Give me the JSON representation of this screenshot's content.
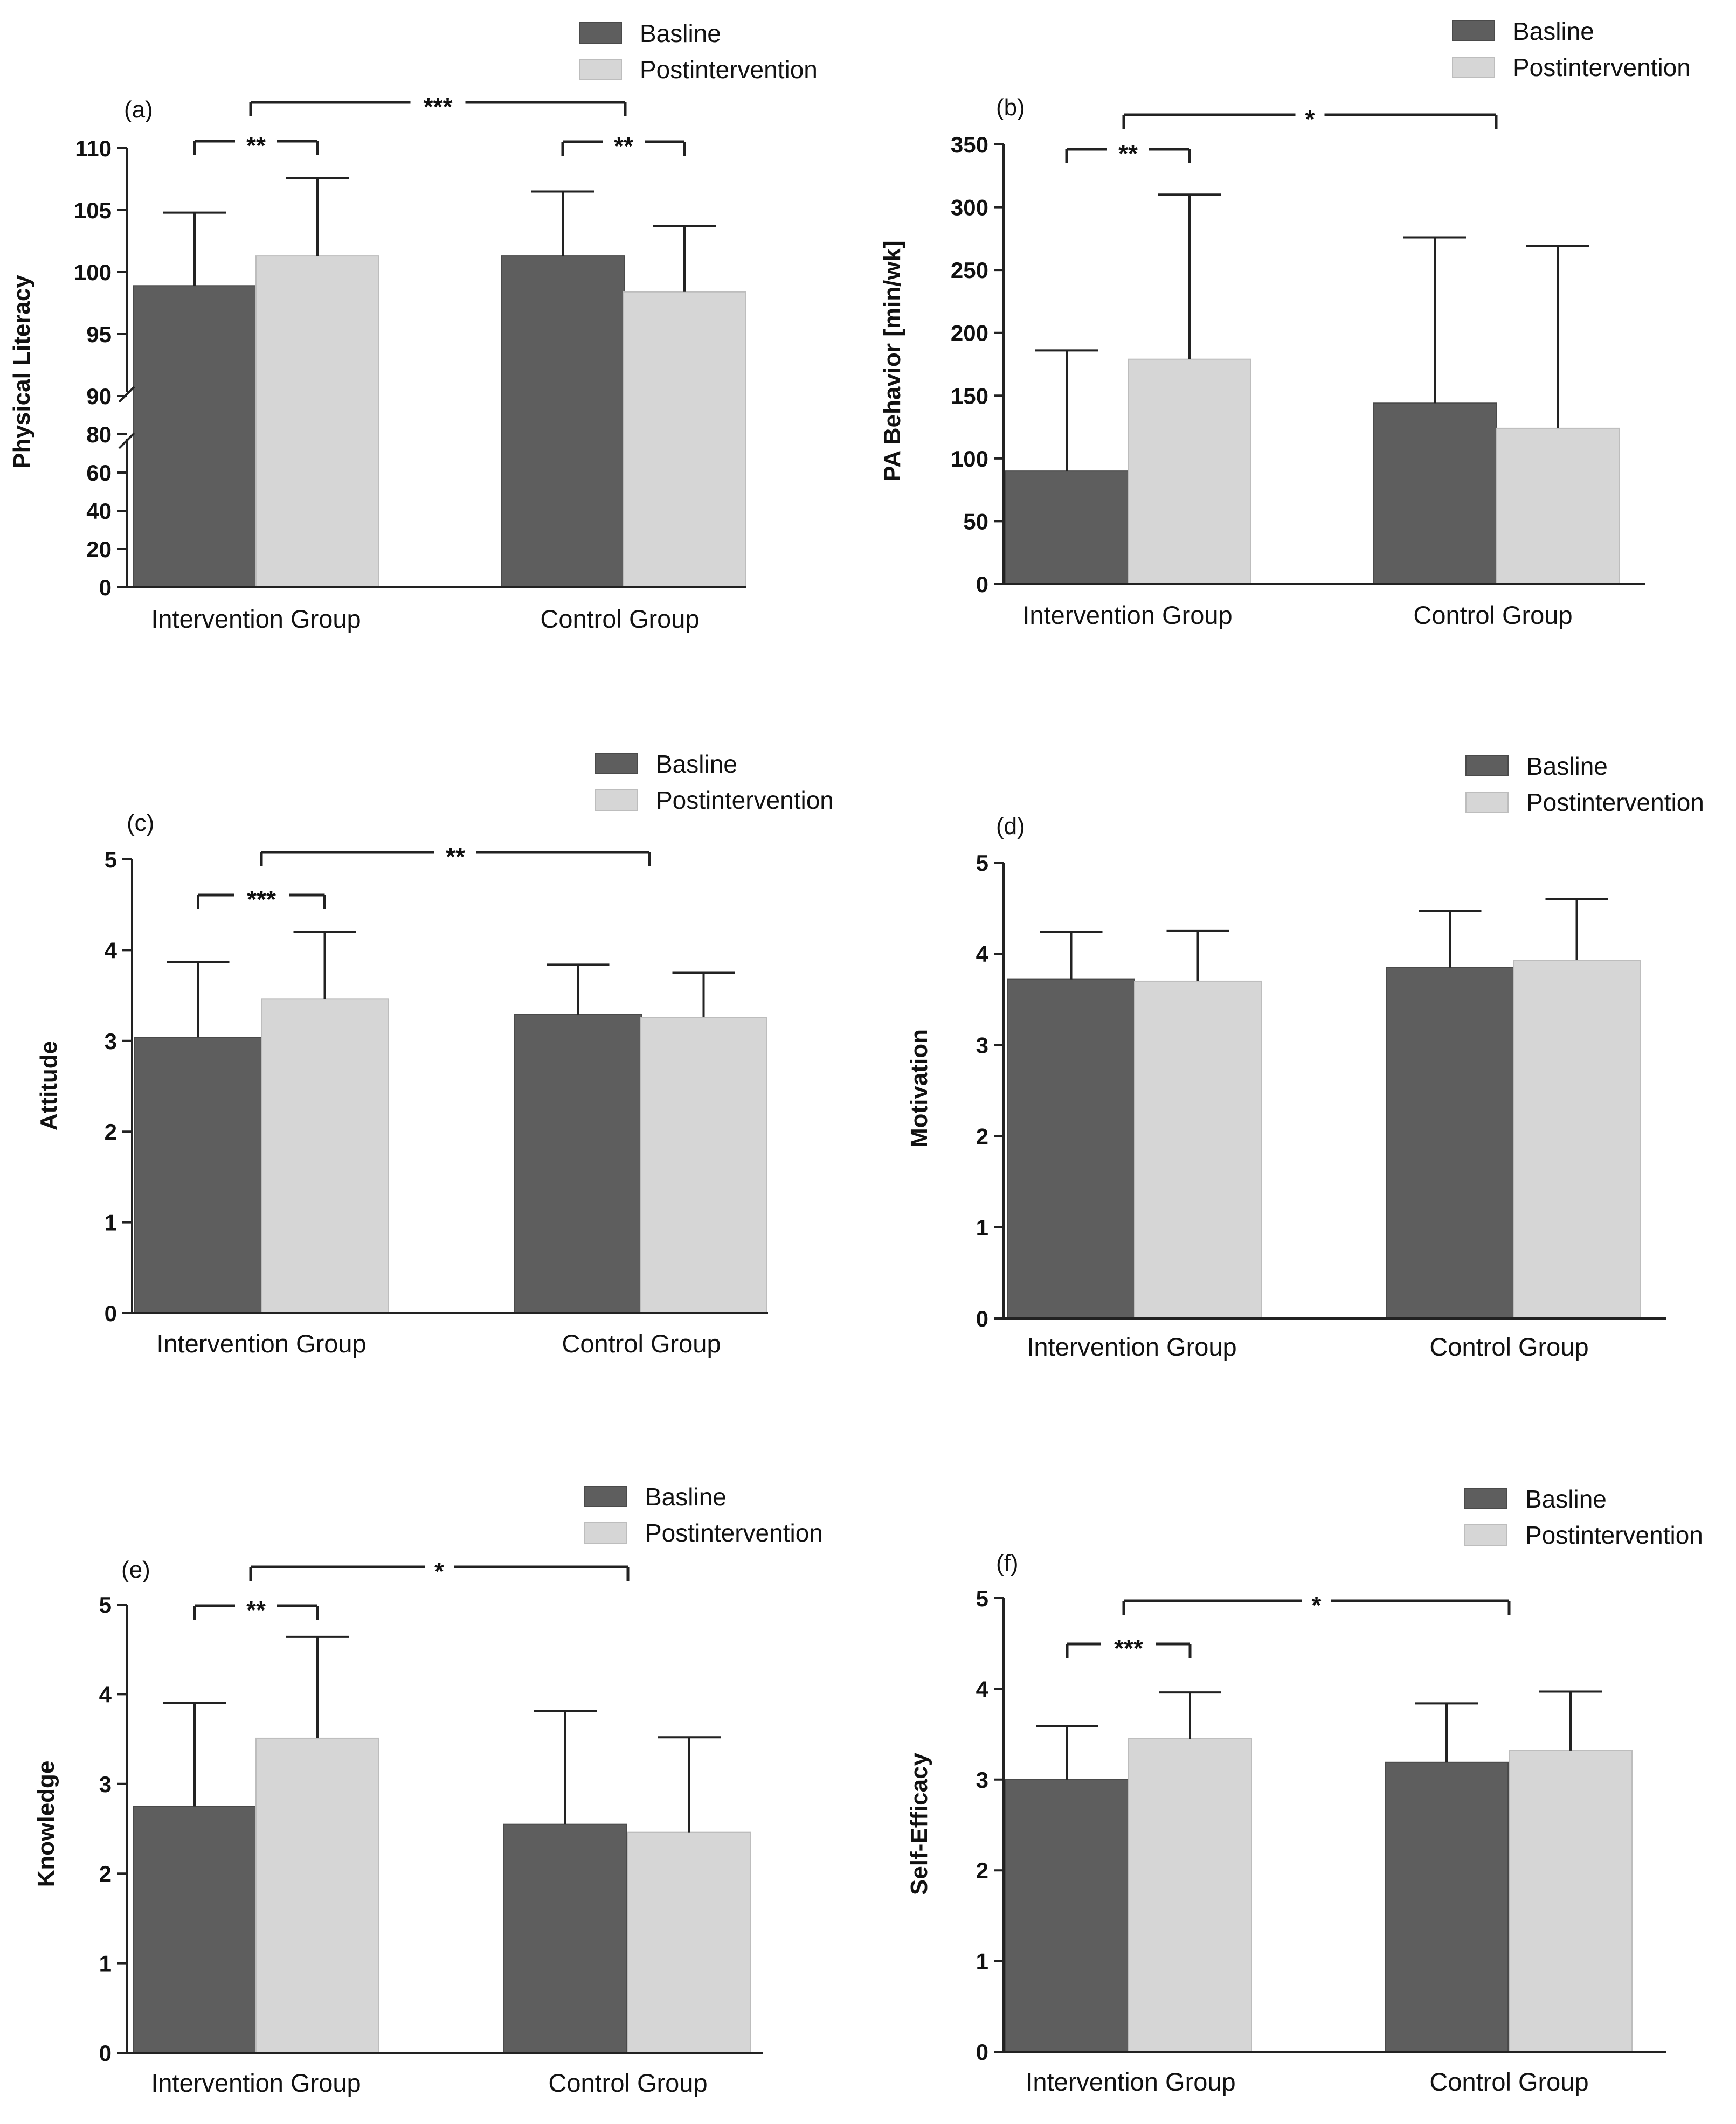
{
  "figure": {
    "background": "#ffffff",
    "baseline_color": "#5e5e5e",
    "post_color": "#d6d6d6",
    "axis_color": "#222222"
  },
  "chart_data": [
    {
      "type": "bar",
      "panel_label": "(a)",
      "categories": [
        "Intervention Group",
        "Control Group"
      ],
      "ylabel": "Physical Literacy",
      "xlabel": "",
      "legend": [
        "Basline",
        "Postintervention"
      ],
      "axis_break": true,
      "ylim_lower": [
        0,
        80
      ],
      "ylim_upper": [
        90,
        110
      ],
      "yticks": [
        "0",
        "20",
        "40",
        "60",
        "80",
        "90",
        "95",
        "100",
        "105",
        "110"
      ],
      "series": [
        {
          "name": "Basline",
          "values": [
            98.9,
            101.3
          ],
          "errors": [
            5.9,
            5.2
          ]
        },
        {
          "name": "Postintervention",
          "values": [
            101.3,
            98.4
          ],
          "errors": [
            6.3,
            5.3
          ]
        }
      ],
      "significance": [
        {
          "label": "**",
          "group": 0
        },
        {
          "label": "**",
          "group": 1
        },
        {
          "label": "***",
          "between": true
        }
      ]
    },
    {
      "type": "bar",
      "panel_label": "(b)",
      "categories": [
        "Intervention Group",
        "Control Group"
      ],
      "ylabel": "PA Behavior [min/wk]",
      "xlabel": "",
      "legend": [
        "Basline",
        "Postintervention"
      ],
      "ylim": [
        0,
        350
      ],
      "yticks": [
        "0",
        "50",
        "100",
        "150",
        "200",
        "250",
        "300",
        "350"
      ],
      "series": [
        {
          "name": "Basline",
          "values": [
            90,
            144
          ],
          "errors": [
            96,
            132
          ]
        },
        {
          "name": "Postintervention",
          "values": [
            179,
            124
          ],
          "errors": [
            131,
            145
          ]
        }
      ],
      "significance": [
        {
          "label": "**",
          "group": 0
        },
        {
          "label": "*",
          "between": true
        }
      ]
    },
    {
      "type": "bar",
      "panel_label": "(c)",
      "categories": [
        "Intervention Group",
        "Control Group"
      ],
      "ylabel": "Attitude",
      "xlabel": "",
      "legend": [
        "Basline",
        "Postintervention"
      ],
      "ylim": [
        0,
        5
      ],
      "yticks": [
        "0",
        "1",
        "2",
        "3",
        "4",
        "5"
      ],
      "series": [
        {
          "name": "Basline",
          "values": [
            3.04,
            3.29
          ],
          "errors": [
            0.83,
            0.55
          ]
        },
        {
          "name": "Postintervention",
          "values": [
            3.46,
            3.26
          ],
          "errors": [
            0.74,
            0.49
          ]
        }
      ],
      "significance": [
        {
          "label": "***",
          "group": 0
        },
        {
          "label": "**",
          "between": true
        }
      ]
    },
    {
      "type": "bar",
      "panel_label": "(d)",
      "categories": [
        "Intervention Group",
        "Control Group"
      ],
      "ylabel": "Motivation",
      "xlabel": "",
      "legend": [
        "Basline",
        "Postintervention"
      ],
      "ylim": [
        0,
        5
      ],
      "yticks": [
        "0",
        "1",
        "2",
        "3",
        "4",
        "5"
      ],
      "series": [
        {
          "name": "Basline",
          "values": [
            3.72,
            3.85
          ],
          "errors": [
            0.52,
            0.62
          ]
        },
        {
          "name": "Postintervention",
          "values": [
            3.7,
            3.93
          ],
          "errors": [
            0.55,
            0.67
          ]
        }
      ],
      "significance": []
    },
    {
      "type": "bar",
      "panel_label": "(e)",
      "categories": [
        "Intervention Group",
        "Control Group"
      ],
      "ylabel": "Knowledge",
      "xlabel": "",
      "legend": [
        "Basline",
        "Postintervention"
      ],
      "ylim": [
        0,
        5
      ],
      "yticks": [
        "0",
        "1",
        "2",
        "3",
        "4",
        "5"
      ],
      "series": [
        {
          "name": "Basline",
          "values": [
            2.75,
            2.55
          ],
          "errors": [
            1.15,
            1.26
          ]
        },
        {
          "name": "Postintervention",
          "values": [
            3.51,
            2.46
          ],
          "errors": [
            1.13,
            1.06
          ]
        }
      ],
      "significance": [
        {
          "label": "**",
          "group": 0
        },
        {
          "label": "*",
          "between": true
        }
      ]
    },
    {
      "type": "bar",
      "panel_label": "(f)",
      "categories": [
        "Intervention Group",
        "Control Group"
      ],
      "ylabel": "Self-Efficacy",
      "xlabel": "",
      "legend": [
        "Basline",
        "Postintervention"
      ],
      "ylim": [
        0,
        5
      ],
      "yticks": [
        "0",
        "1",
        "2",
        "3",
        "4",
        "5"
      ],
      "series": [
        {
          "name": "Basline",
          "values": [
            3.0,
            3.19
          ],
          "errors": [
            0.59,
            0.65
          ]
        },
        {
          "name": "Postintervention",
          "values": [
            3.45,
            3.32
          ],
          "errors": [
            0.51,
            0.65
          ]
        }
      ],
      "significance": [
        {
          "label": "***",
          "group": 0
        },
        {
          "label": "*",
          "between": true
        }
      ]
    }
  ]
}
